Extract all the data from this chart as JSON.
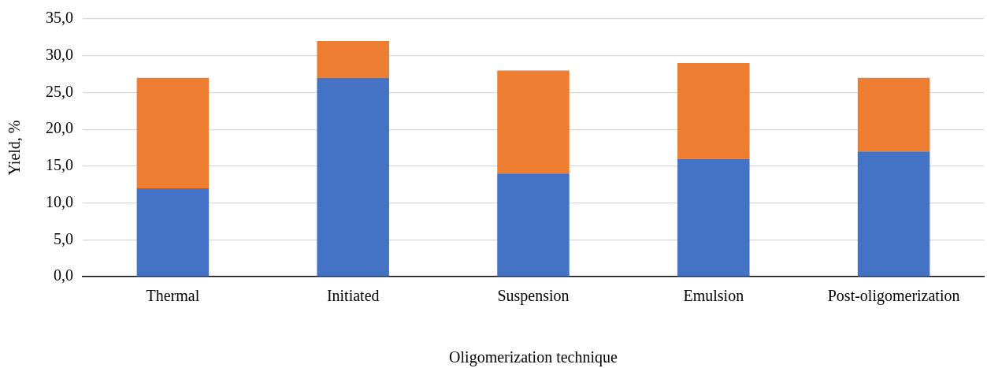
{
  "chart_data": {
    "type": "bar",
    "stacked": true,
    "xlabel": "Oligomerization technique",
    "ylabel": "Yield, %",
    "categories": [
      "Thermal",
      "Initiated",
      "Suspension",
      "Emulsion",
      "Post-oligomerization"
    ],
    "series": [
      {
        "color": "#4472c4",
        "values": [
          12,
          27,
          14,
          16,
          17
        ]
      },
      {
        "color": "#ed7d31",
        "values": [
          15,
          5,
          14,
          13,
          10
        ]
      }
    ],
    "ylim": [
      0,
      35
    ],
    "yticks": [
      {
        "value": 0,
        "label": "0,0"
      },
      {
        "value": 5,
        "label": "5,0"
      },
      {
        "value": 10,
        "label": "10,0"
      },
      {
        "value": 15,
        "label": "15,0"
      },
      {
        "value": 20,
        "label": "20,0"
      },
      {
        "value": 25,
        "label": "25,0"
      },
      {
        "value": 30,
        "label": "30,0"
      },
      {
        "value": 35,
        "label": "35,0"
      }
    ],
    "grid": "y",
    "legend": false
  }
}
